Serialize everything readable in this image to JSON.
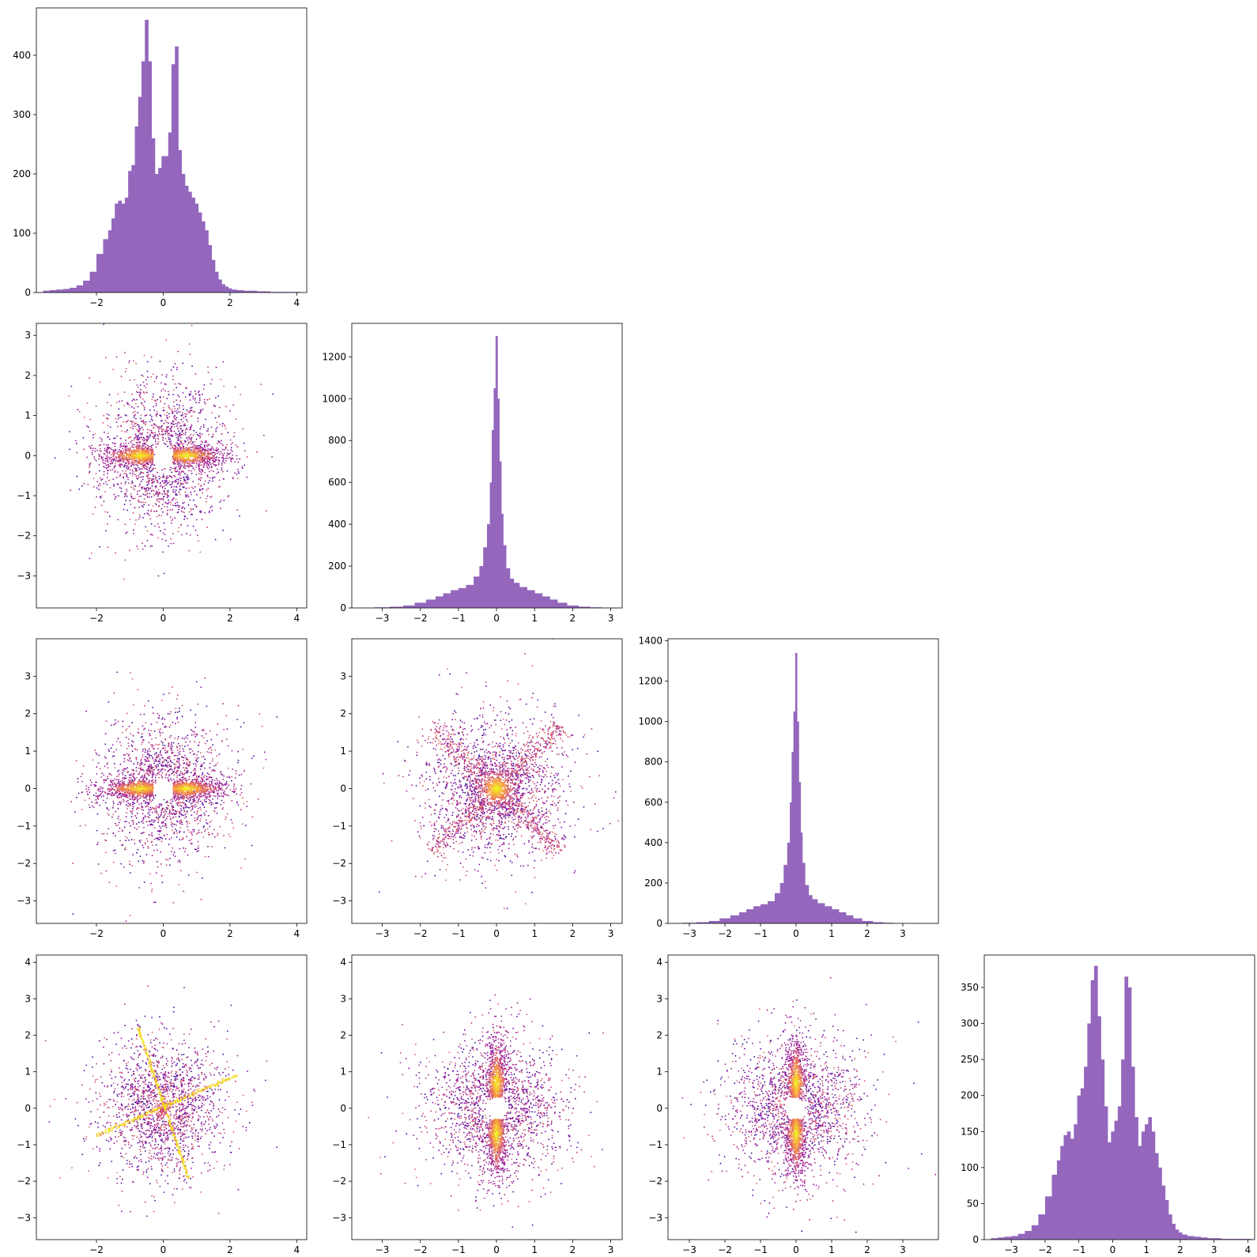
{
  "chart_data": [
    {
      "panel": "row1-col1",
      "type": "bar",
      "xlim": [
        -3.8,
        4.3
      ],
      "ylim": [
        0,
        480
      ],
      "xticks": [
        -2,
        0,
        2,
        4
      ],
      "yticks": [
        0,
        100,
        200,
        300,
        400
      ],
      "bin_centers": [
        -3.5,
        -3.3,
        -3.1,
        -2.9,
        -2.7,
        -2.5,
        -2.3,
        -2.1,
        -1.9,
        -1.7,
        -1.6,
        -1.5,
        -1.4,
        -1.3,
        -1.2,
        -1.1,
        -1.0,
        -0.9,
        -0.8,
        -0.7,
        -0.6,
        -0.5,
        -0.4,
        -0.3,
        -0.2,
        -0.1,
        0.0,
        0.1,
        0.2,
        0.3,
        0.4,
        0.5,
        0.6,
        0.7,
        0.8,
        0.9,
        1.0,
        1.1,
        1.2,
        1.3,
        1.4,
        1.5,
        1.6,
        1.7,
        1.8,
        1.9,
        2.0,
        2.1,
        2.3,
        2.5,
        2.7,
        2.9,
        3.1,
        3.3,
        3.5,
        3.9
      ],
      "values": [
        3,
        4,
        5,
        6,
        8,
        12,
        20,
        35,
        65,
        90,
        105,
        125,
        150,
        155,
        150,
        160,
        205,
        215,
        280,
        330,
        390,
        460,
        390,
        260,
        200,
        210,
        230,
        230,
        270,
        385,
        415,
        240,
        200,
        180,
        170,
        160,
        150,
        135,
        120,
        105,
        80,
        55,
        35,
        22,
        14,
        10,
        7,
        5,
        4,
        3,
        3,
        2,
        2,
        1,
        1,
        1
      ]
    },
    {
      "panel": "row2-col1",
      "type": "scatter",
      "xlim": [
        -3.8,
        4.3
      ],
      "ylim": [
        -3.8,
        3.3
      ],
      "xticks": [
        -2,
        0,
        2,
        4
      ],
      "yticks": [
        -3,
        -2,
        -1,
        0,
        1,
        2,
        3
      ],
      "structure": "isotropic cloud plus dense horizontal band along y = 0 with gap near x = 0"
    },
    {
      "panel": "row2-col2",
      "type": "bar",
      "xlim": [
        -3.8,
        3.3
      ],
      "ylim": [
        0,
        1360
      ],
      "xticks": [
        -3,
        -2,
        -1,
        0,
        1,
        2,
        3
      ],
      "yticks": [
        0,
        200,
        400,
        600,
        800,
        1000,
        1200
      ],
      "bin_centers": [
        -3.0,
        -2.6,
        -2.3,
        -2.0,
        -1.7,
        -1.5,
        -1.3,
        -1.1,
        -0.9,
        -0.7,
        -0.5,
        -0.4,
        -0.3,
        -0.2,
        -0.15,
        -0.1,
        -0.05,
        0.0,
        0.05,
        0.1,
        0.15,
        0.2,
        0.3,
        0.4,
        0.5,
        0.7,
        0.9,
        1.1,
        1.3,
        1.5,
        1.7,
        2.0,
        2.3,
        2.6
      ],
      "values": [
        3,
        6,
        12,
        25,
        40,
        55,
        70,
        85,
        95,
        110,
        150,
        200,
        290,
        400,
        600,
        850,
        1050,
        1300,
        1000,
        700,
        450,
        300,
        190,
        140,
        120,
        100,
        85,
        70,
        55,
        40,
        25,
        12,
        6,
        3
      ]
    },
    {
      "panel": "row3-col1",
      "type": "scatter",
      "xlim": [
        -3.8,
        4.3
      ],
      "ylim": [
        -3.6,
        4.0
      ],
      "xticks": [
        -2,
        0,
        2,
        4
      ],
      "yticks": [
        -3,
        -2,
        -1,
        0,
        1,
        2,
        3
      ],
      "structure": "isotropic cloud plus dense horizontal band along y = 0 with gap near x = 0"
    },
    {
      "panel": "row3-col2",
      "type": "scatter",
      "xlim": [
        -3.8,
        3.3
      ],
      "ylim": [
        -3.6,
        4.0
      ],
      "xticks": [
        -3,
        -2,
        -1,
        0,
        1,
        2,
        3
      ],
      "yticks": [
        -3,
        -2,
        -1,
        0,
        1,
        2,
        3
      ],
      "structure": "dense core at origin with diagonal X-shaped arms"
    },
    {
      "panel": "row3-col3",
      "type": "bar",
      "xlim": [
        -3.6,
        4.0
      ],
      "ylim": [
        0,
        1410
      ],
      "xticks": [
        -3,
        -2,
        -1,
        0,
        1,
        2,
        3
      ],
      "yticks": [
        0,
        200,
        400,
        600,
        800,
        1000,
        1200,
        1400
      ],
      "bin_centers": [
        -3.0,
        -2.6,
        -2.3,
        -2.0,
        -1.7,
        -1.5,
        -1.3,
        -1.1,
        -0.9,
        -0.7,
        -0.5,
        -0.4,
        -0.3,
        -0.2,
        -0.15,
        -0.1,
        -0.05,
        0.0,
        0.05,
        0.1,
        0.15,
        0.2,
        0.3,
        0.4,
        0.5,
        0.7,
        0.9,
        1.1,
        1.3,
        1.5,
        1.7,
        2.0,
        2.3,
        2.6
      ],
      "values": [
        3,
        6,
        12,
        25,
        40,
        55,
        70,
        85,
        95,
        110,
        150,
        200,
        290,
        400,
        600,
        850,
        1050,
        1340,
        1000,
        700,
        450,
        300,
        190,
        140,
        120,
        100,
        85,
        70,
        55,
        40,
        25,
        12,
        6,
        3
      ]
    },
    {
      "panel": "row4-col1",
      "type": "scatter",
      "xlim": [
        -3.8,
        4.3
      ],
      "ylim": [
        -3.6,
        4.2
      ],
      "xticks": [
        -2,
        0,
        2,
        4
      ],
      "yticks": [
        -3,
        -2,
        -1,
        0,
        1,
        2,
        3,
        4
      ],
      "structure": "isotropic cloud plus two bright crossing line segments: (-2,-0.75) to (2.2,0.9) and (-0.75,2.2) to (0.75,-1.9)"
    },
    {
      "panel": "row4-col2",
      "type": "scatter",
      "xlim": [
        -3.8,
        3.3
      ],
      "ylim": [
        -3.6,
        4.2
      ],
      "xticks": [
        -3,
        -2,
        -1,
        0,
        1,
        2,
        3
      ],
      "yticks": [
        -3,
        -2,
        -1,
        0,
        1,
        2,
        3,
        4
      ],
      "structure": "isotropic cloud plus dense vertical band along x = 0 with gap near y = 0"
    },
    {
      "panel": "row4-col3",
      "type": "scatter",
      "xlim": [
        -3.6,
        4.0
      ],
      "ylim": [
        -3.6,
        4.2
      ],
      "xticks": [
        -3,
        -2,
        -1,
        0,
        1,
        2,
        3
      ],
      "yticks": [
        -3,
        -2,
        -1,
        0,
        1,
        2,
        3,
        4
      ],
      "structure": "isotropic cloud plus dense vertical band along x = 0 with gap near y = 0"
    },
    {
      "panel": "row4-col4",
      "type": "bar",
      "xlim": [
        -3.8,
        4.2
      ],
      "ylim": [
        0,
        395
      ],
      "xticks": [
        -3,
        -2,
        -1,
        0,
        1,
        2,
        3,
        4
      ],
      "yticks": [
        0,
        50,
        100,
        150,
        200,
        250,
        300,
        350
      ],
      "bin_centers": [
        -3.5,
        -3.3,
        -3.1,
        -2.9,
        -2.7,
        -2.5,
        -2.3,
        -2.1,
        -1.9,
        -1.7,
        -1.6,
        -1.5,
        -1.4,
        -1.3,
        -1.2,
        -1.1,
        -1.0,
        -0.9,
        -0.8,
        -0.7,
        -0.6,
        -0.5,
        -0.4,
        -0.3,
        -0.2,
        -0.1,
        0.0,
        0.1,
        0.2,
        0.3,
        0.4,
        0.5,
        0.6,
        0.7,
        0.8,
        0.9,
        1.0,
        1.1,
        1.2,
        1.3,
        1.4,
        1.5,
        1.6,
        1.7,
        1.8,
        1.9,
        2.0,
        2.1,
        2.3,
        2.5,
        2.7,
        2.9,
        3.1,
        3.3,
        3.5,
        3.9
      ],
      "values": [
        2,
        3,
        4,
        5,
        8,
        12,
        20,
        35,
        60,
        90,
        110,
        130,
        145,
        150,
        140,
        160,
        200,
        210,
        240,
        300,
        360,
        380,
        310,
        250,
        185,
        135,
        150,
        165,
        185,
        250,
        365,
        350,
        240,
        170,
        130,
        150,
        160,
        170,
        150,
        120,
        100,
        75,
        55,
        35,
        22,
        14,
        10,
        7,
        5,
        4,
        3,
        2,
        2,
        1,
        1,
        1
      ]
    }
  ]
}
